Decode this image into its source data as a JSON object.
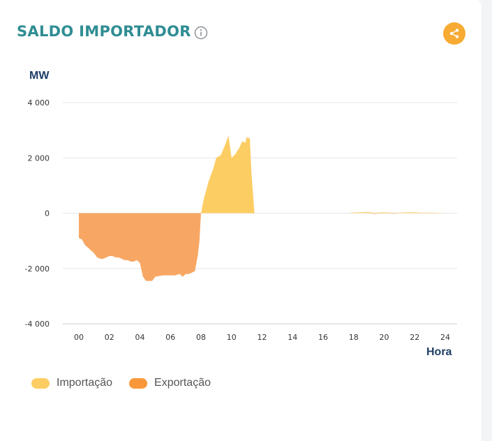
{
  "header": {
    "title": "SALDO IMPORTADOR",
    "info_icon": "info-icon",
    "share_icon": "share-icon"
  },
  "colors": {
    "title": "#2f8d93",
    "axis_text": "#1f3e66",
    "import": "#fccd63",
    "export": "#f7a763",
    "export_legend": "#f8983a",
    "share_button": "#f7ab33",
    "grid": "#e6e6e6"
  },
  "chart_data": {
    "type": "area",
    "ylabel": "MW",
    "xlabel": "Hora",
    "xlim": [
      0,
      24
    ],
    "ylim": [
      -4000,
      4000
    ],
    "x_ticks": [
      "00",
      "02",
      "04",
      "06",
      "08",
      "10",
      "12",
      "14",
      "16",
      "18",
      "20",
      "22",
      "24"
    ],
    "y_ticks": [
      "4 000",
      "2 000",
      "0",
      "-2 000",
      "-4 000"
    ],
    "y_tick_values": [
      4000,
      2000,
      0,
      -2000,
      -4000
    ],
    "grid": true,
    "legend_position": "bottom-left",
    "series": [
      {
        "name": "Importação",
        "color": "#fccd63",
        "x": [
          8.0,
          8.2,
          8.5,
          8.8,
          9.0,
          9.3,
          9.6,
          9.8,
          10.0,
          10.2,
          10.5,
          10.7,
          10.9,
          11.0,
          11.2,
          11.3,
          11.5
        ],
        "y": [
          0,
          550,
          1150,
          1600,
          2000,
          2100,
          2500,
          2800,
          2000,
          2100,
          2350,
          2600,
          2550,
          2750,
          2700,
          1500,
          0
        ]
      },
      {
        "name": "Exportação",
        "color": "#f7a763",
        "x": [
          0.0,
          0.2,
          0.4,
          0.6,
          0.8,
          1.0,
          1.2,
          1.4,
          1.6,
          1.8,
          2.0,
          2.2,
          2.4,
          2.6,
          2.8,
          3.0,
          3.2,
          3.4,
          3.6,
          3.8,
          4.0,
          4.2,
          4.4,
          4.6,
          4.8,
          5.0,
          5.5,
          6.0,
          6.3,
          6.6,
          6.8,
          7.0,
          7.2,
          7.4,
          7.6,
          7.8,
          7.9,
          8.0
        ],
        "y": [
          -900,
          -950,
          -1150,
          -1250,
          -1350,
          -1450,
          -1600,
          -1650,
          -1650,
          -1600,
          -1550,
          -1550,
          -1600,
          -1600,
          -1650,
          -1700,
          -1700,
          -1750,
          -1750,
          -1700,
          -1800,
          -2300,
          -2450,
          -2450,
          -2450,
          -2300,
          -2250,
          -2250,
          -2250,
          -2200,
          -2300,
          -2200,
          -2200,
          -2150,
          -2100,
          -1500,
          -1000,
          0
        ]
      }
    ],
    "noise_series": {
      "x": [
        17.8,
        18.2,
        18.6,
        19.0,
        19.4,
        19.8,
        20.2,
        20.6,
        21.0,
        21.4,
        21.8,
        22.2,
        22.6,
        23.0,
        23.4,
        23.8
      ],
      "y": [
        20,
        30,
        40,
        50,
        -30,
        40,
        30,
        -25,
        20,
        35,
        40,
        30,
        20,
        25,
        15,
        10
      ]
    }
  },
  "legend": {
    "items": [
      {
        "label": "Importação",
        "color": "#fccd63"
      },
      {
        "label": "Exportação",
        "color": "#f8983a"
      }
    ]
  }
}
